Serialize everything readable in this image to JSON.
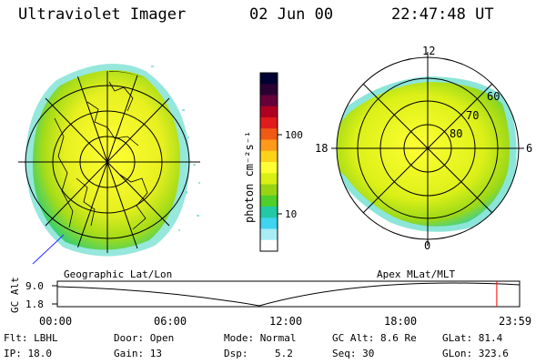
{
  "header": {
    "instrument": "Ultraviolet Imager",
    "date": "02 Jun 00",
    "time": "22:47:48 UT"
  },
  "left_panel": {
    "label": "Geographic Lat/Lon"
  },
  "right_panel": {
    "label": "Apex MLat/MLT",
    "mlt_labels": [
      "12",
      "18",
      "6",
      "0"
    ],
    "lat_labels": [
      "60",
      "70",
      "80"
    ]
  },
  "colorbar": {
    "unit_label": "photon cm⁻²s⁻¹",
    "ticks": [
      "100",
      "10"
    ],
    "colors": [
      "#000033",
      "#2a0033",
      "#66003a",
      "#b00022",
      "#e11b1b",
      "#f05a14",
      "#ff9a1a",
      "#ffd21a",
      "#ffff33",
      "#d8f014",
      "#98d414",
      "#4fcf2a",
      "#22c9a6",
      "#3fd4f0",
      "#a8ecf6",
      "#ffffff"
    ]
  },
  "timeline": {
    "y_axis_label": "GC Alt",
    "y_ticks": [
      "9.0",
      "1.8"
    ],
    "x_ticks": [
      "00:00",
      "06:00",
      "12:00",
      "18:00",
      "23:59"
    ],
    "current_time_hours": 22.8,
    "marker_color": "#ff0000"
  },
  "info": {
    "filter": "Flt: LBHL",
    "ip": "IP: 18.0",
    "door": "Door: Open",
    "gain": "Gain: 13",
    "mode": "Mode: Normal",
    "dsp_label": "Dsp:",
    "dsp_value": "5.2",
    "gc_alt": "GC Alt: 8.6 Re",
    "seq": "Seq: 30",
    "glat": "GLat:  81.4",
    "glon": "GLon: 323.6"
  }
}
